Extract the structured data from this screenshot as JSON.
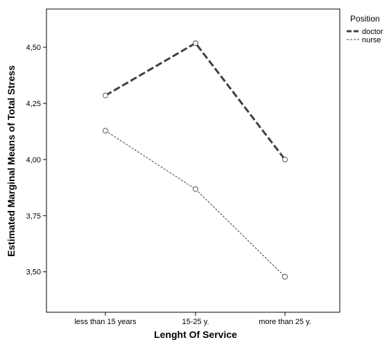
{
  "chart_data": {
    "type": "line",
    "categories": [
      "less than 15 years",
      "15-25 y.",
      "more than 25 y."
    ],
    "series": [
      {
        "name": "doctor",
        "values": [
          4.285,
          4.518,
          4.0
        ],
        "style": "dashed-thick",
        "color": "#404040"
      },
      {
        "name": "nurse",
        "values": [
          4.128,
          3.868,
          3.478
        ],
        "style": "dotted-thin",
        "color": "#404040"
      }
    ],
    "xlabel": "Lenght Of Service",
    "ylabel": "Estimated Marginal Means of Total Stress",
    "ylim": [
      3.32,
      4.67
    ],
    "yticks": [
      3.5,
      3.75,
      4.0,
      4.25,
      4.5
    ],
    "ytick_labels": [
      "3,50",
      "3,75",
      "4,00",
      "4,25",
      "4,50"
    ],
    "legend": {
      "title": "Position",
      "placement": "top-right-outside"
    },
    "grid": false,
    "marker": "open-circle"
  }
}
